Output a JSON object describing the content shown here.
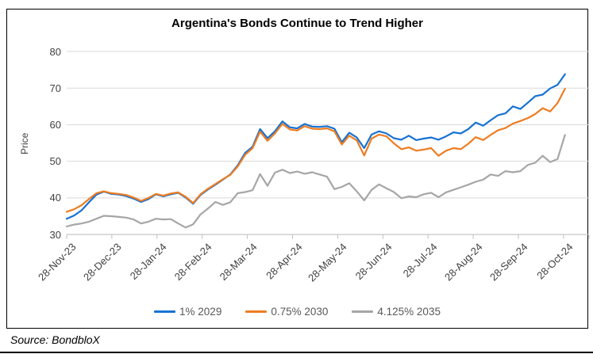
{
  "chart_data": {
    "type": "line",
    "title": "Argentina's Bonds Continue to Trend Higher",
    "ylabel": "Price",
    "ylim": [
      30,
      80
    ],
    "yticks": [
      30,
      40,
      50,
      60,
      70,
      80
    ],
    "grid": "horizontal",
    "legend_position": "bottom",
    "categories": [
      "28-Nov-23",
      "28-Dec-23",
      "28-Jan-24",
      "28-Feb-24",
      "28-Mar-24",
      "28-Apr-24",
      "28-May-24",
      "28-Jun-24",
      "28-Jul-24",
      "28-Aug-24",
      "28-Sep-24",
      "28-Oct-24"
    ],
    "x_start": "28-Nov-23",
    "x_end": "28-Oct-24",
    "sample_interval_days": 5,
    "series": [
      {
        "name": "1% 2029",
        "color": "#1772D2",
        "values": [
          34.3,
          35.2,
          36.6,
          38.8,
          40.9,
          41.7,
          41.1,
          40.9,
          40.5,
          39.8,
          38.9,
          39.7,
          41.0,
          40.4,
          41.0,
          41.4,
          40.1,
          38.4,
          40.8,
          42.3,
          43.6,
          45.0,
          46.4,
          48.9,
          52.3,
          54.0,
          58.8,
          56.3,
          58.2,
          60.9,
          59.3,
          59.0,
          60.2,
          59.5,
          59.4,
          59.6,
          58.9,
          55.2,
          57.8,
          56.5,
          53.6,
          57.3,
          58.2,
          57.6,
          56.3,
          55.9,
          57.0,
          55.8,
          56.2,
          56.5,
          55.9,
          56.8,
          57.9,
          57.6,
          58.8,
          60.6,
          59.7,
          61.2,
          62.6,
          63.1,
          65.0,
          64.3,
          66.0,
          67.8,
          68.2,
          69.9,
          70.9,
          73.8
        ]
      },
      {
        "name": "0.75% 2030",
        "color": "#EE7D22",
        "values": [
          36.2,
          36.9,
          38.0,
          39.7,
          41.3,
          41.8,
          41.3,
          41.1,
          40.8,
          40.1,
          39.2,
          40.0,
          41.1,
          40.6,
          41.2,
          41.5,
          40.3,
          38.6,
          41.0,
          42.5,
          43.8,
          45.1,
          46.3,
          48.6,
          51.8,
          53.6,
          58.1,
          55.6,
          57.6,
          60.2,
          58.7,
          58.4,
          59.6,
          58.9,
          58.8,
          59.0,
          58.2,
          54.6,
          57.0,
          55.7,
          51.6,
          56.2,
          57.3,
          56.8,
          54.9,
          53.3,
          53.8,
          52.9,
          53.2,
          53.6,
          51.5,
          52.9,
          53.6,
          53.3,
          54.8,
          56.6,
          55.8,
          57.2,
          58.5,
          59.1,
          60.3,
          61.0,
          61.8,
          62.9,
          64.5,
          63.6,
          65.9,
          69.8
        ]
      },
      {
        "name": "4.125% 2035",
        "color": "#A6A6A6",
        "values": [
          32.2,
          32.7,
          33.0,
          33.5,
          34.3,
          35.1,
          35.0,
          34.8,
          34.6,
          34.1,
          33.0,
          33.5,
          34.3,
          34.1,
          34.2,
          33.0,
          31.9,
          32.8,
          35.5,
          37.1,
          38.9,
          38.1,
          38.8,
          41.3,
          41.6,
          42.1,
          46.5,
          43.3,
          46.9,
          47.7,
          46.8,
          47.2,
          46.6,
          47.0,
          46.4,
          45.8,
          42.4,
          43.0,
          44.0,
          41.8,
          39.3,
          42.2,
          43.7,
          42.6,
          41.6,
          39.9,
          40.4,
          40.2,
          41.0,
          41.4,
          40.2,
          41.5,
          42.2,
          42.9,
          43.6,
          44.4,
          45.0,
          46.4,
          46.0,
          47.3,
          47.0,
          47.3,
          49.0,
          49.6,
          51.5,
          49.8,
          50.6,
          57.2
        ]
      }
    ]
  },
  "source_note": "Source: BondbloX",
  "colors": {
    "grid_line": "#D9D9D9",
    "axis_line": "#BFBFBF",
    "tick_text": "#404040",
    "legend_text": "#595959",
    "border": "#000000"
  }
}
